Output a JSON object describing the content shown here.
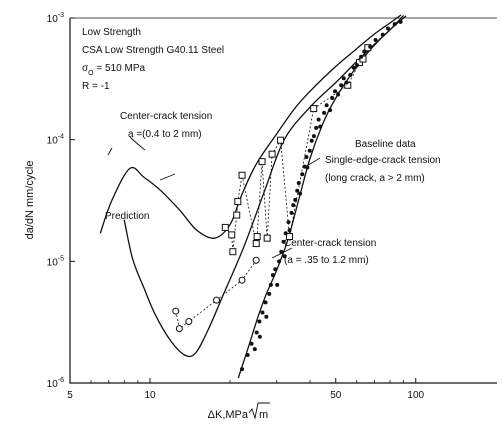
{
  "chart_data": {
    "type": "scatter",
    "title_lines": [
      "Low Strength",
      "CSA Low Strength G40.11 Steel"
    ],
    "stress": {
      "sym": "σ",
      "sub": "O",
      "val": " = 510 MPa"
    },
    "ratio_line": "R = -1",
    "xlabel_main": "ΔK,MPa ",
    "xlabel_root": "m",
    "ylabel": "da/dN mm/cycle",
    "xscale": "log",
    "yscale": "log",
    "xlim": [
      5,
      100
    ],
    "ylim": [
      1e-06,
      0.001
    ],
    "x_ticks": [
      {
        "v": 5,
        "label": "5"
      },
      {
        "v": 10,
        "label": "10"
      },
      {
        "v": 50,
        "label": "50"
      },
      {
        "v": 100,
        "label": "100"
      }
    ],
    "y_ticks": [
      {
        "v": 1e-06,
        "m": "10",
        "e": "-6"
      },
      {
        "v": 1e-05,
        "m": "10",
        "e": "-5"
      },
      {
        "v": 0.0001,
        "m": "10",
        "e": "-4"
      },
      {
        "v": 0.001,
        "m": "10",
        "e": "-3"
      }
    ],
    "annotations": {
      "cct1": "Center-crack tension",
      "cct1_range": "a =(0.4 to 2 mm)",
      "baseline": "Baseline data",
      "secrack": "Single-edge-crack tension",
      "secrack_range": "(long crack, a > 2 mm)",
      "cct2": "Center-crack tension",
      "cct2_range": "(a = .35 to 1.2 mm)",
      "prediction": "Prediction"
    },
    "series": [
      {
        "name": "Center-crack tension, a =(0.4 to 2 mm)",
        "marker": "square",
        "points": [
          [
            19.2,
            1.9e-05
          ],
          [
            20.3,
            1.65e-05
          ],
          [
            20.5,
            1.2e-05
          ],
          [
            21.2,
            2.4e-05
          ],
          [
            21.4,
            3.1e-05
          ],
          [
            22.2,
            5.1e-05
          ],
          [
            25.1,
            1.4e-05
          ],
          [
            25.3,
            1.6e-05
          ],
          [
            26.4,
            6.6e-05
          ],
          [
            27.6,
            1.55e-05
          ],
          [
            28.8,
            7.6e-05
          ],
          [
            31,
            9.9e-05
          ],
          [
            33.5,
            1.6e-05
          ],
          [
            41.3,
            0.00018
          ],
          [
            55.5,
            0.00028
          ],
          [
            61.4,
            0.00043
          ],
          [
            63.3,
            0.00046
          ],
          [
            66,
            0.00057
          ]
        ]
      },
      {
        "name": "Center-crack tension, (a = .35 to 1.2 mm)",
        "marker": "circle",
        "points": [
          [
            12.5,
            3.9e-06
          ],
          [
            12.9,
            2.8e-06
          ],
          [
            14,
            3.2e-06
          ],
          [
            17.8,
            4.8e-06
          ],
          [
            22.2,
            7e-06
          ],
          [
            25.1,
            1.02e-05
          ]
        ]
      },
      {
        "name": "Baseline data, Single-edge-crack tension (long crack, a > 2 mm)",
        "marker": "dot",
        "points": [
          [
            22.2,
            1.3e-06
          ],
          [
            23.3,
            1.7e-06
          ],
          [
            24.1,
            2.1e-06
          ],
          [
            24.8,
            1.9e-06
          ],
          [
            25.2,
            2.6e-06
          ],
          [
            25.8,
            3.2e-06
          ],
          [
            25.9,
            2.4e-06
          ],
          [
            26.5,
            3.8e-06
          ],
          [
            27.2,
            4.6e-06
          ],
          [
            27.4,
            3.5e-06
          ],
          [
            28.1,
            5.4e-06
          ],
          [
            28.5,
            6.4e-06
          ],
          [
            29,
            7.7e-06
          ],
          [
            29.6,
            8.6e-06
          ],
          [
            30.1,
            6.4e-06
          ],
          [
            30.6,
            1e-05
          ],
          [
            31.2,
            1.2e-05
          ],
          [
            31.8,
            1.45e-05
          ],
          [
            32.1,
            1.1e-05
          ],
          [
            32.4,
            1.7e-05
          ],
          [
            33.2,
            2.1e-05
          ],
          [
            33.5,
            1.8e-05
          ],
          [
            34.1,
            2.5e-05
          ],
          [
            34.6,
            2.9e-05
          ],
          [
            35.2,
            3.2e-05
          ],
          [
            35.8,
            3.8e-05
          ],
          [
            36.3,
            4.4e-05
          ],
          [
            36.7,
            3.6e-05
          ],
          [
            37.4,
            5.2e-05
          ],
          [
            38.2,
            6e-05
          ],
          [
            38.8,
            7.2e-05
          ],
          [
            39.1,
            5.9e-05
          ],
          [
            39.9,
            8.1e-05
          ],
          [
            40.6,
            9.8e-05
          ],
          [
            41.4,
            0.000107
          ],
          [
            42.2,
            0.000125
          ],
          [
            43.1,
            0.000146
          ],
          [
            43.7,
            0.000128
          ],
          [
            45.2,
            0.000166
          ],
          [
            46.2,
            0.000192
          ],
          [
            47.6,
            0.000175
          ],
          [
            48.5,
            0.00022
          ],
          [
            49.7,
            0.00025
          ],
          [
            51,
            0.000235
          ],
          [
            52.4,
            0.00028
          ],
          [
            53.6,
            0.00032
          ],
          [
            54.9,
            0.000295
          ],
          [
            56.7,
            0.00034
          ],
          [
            58.4,
            0.00039
          ],
          [
            60.1,
            0.00041
          ],
          [
            62.3,
            0.00048
          ],
          [
            64,
            0.00053
          ],
          [
            67.4,
            0.00058
          ],
          [
            70.6,
            0.00066
          ],
          [
            75.1,
            0.00073
          ],
          [
            78.6,
            0.00082
          ],
          [
            83.3,
            0.00089
          ],
          [
            87.7,
            0.00093
          ]
        ]
      }
    ],
    "curves": [
      {
        "name": "Prediction",
        "points": [
          [
            6.5,
            1.7e-05
          ],
          [
            7.2,
            3.2e-05
          ],
          [
            8.4,
            5.8e-05
          ],
          [
            9.5,
            4.9e-05
          ],
          [
            11,
            3.8e-05
          ],
          [
            13,
            2.6e-05
          ],
          [
            15,
            1.8e-05
          ],
          [
            17.5,
            1.55e-05
          ],
          [
            20,
            2e-05
          ],
          [
            22,
            3.4e-05
          ],
          [
            25,
            6.2e-05
          ],
          [
            30,
            0.000112
          ],
          [
            35,
            0.00018
          ],
          [
            40,
            0.00025
          ],
          [
            50,
            0.0004
          ],
          [
            60,
            0.00056
          ],
          [
            70,
            0.00074
          ],
          [
            80,
            0.00091
          ],
          [
            88,
            0.00106
          ]
        ]
      },
      {
        "name": "Prediction",
        "points": [
          [
            8,
            2.2e-05
          ],
          [
            8.6,
            1.05e-05
          ],
          [
            9.5,
            6e-06
          ],
          [
            10.5,
            3.6e-06
          ],
          [
            12,
            2.2e-06
          ],
          [
            13.5,
            1.7e-06
          ],
          [
            14.8,
            1.75e-06
          ],
          [
            16.5,
            2.7e-06
          ],
          [
            19,
            5.5e-06
          ],
          [
            22.5,
            1.3e-05
          ],
          [
            27,
            3.8e-05
          ],
          [
            32,
            0.0001
          ],
          [
            40,
            0.000185
          ],
          [
            50,
            0.000295
          ],
          [
            60,
            0.00044
          ],
          [
            70,
            0.00061
          ],
          [
            80,
            0.0008
          ],
          [
            90,
            0.00105
          ]
        ]
      },
      {
        "name": "Baseline data",
        "points": [
          [
            21.5,
            1.1e-06
          ],
          [
            23.5,
            2e-06
          ],
          [
            25.5,
            3.5e-06
          ],
          [
            27.5,
            5.5e-06
          ],
          [
            30,
            8.5e-06
          ],
          [
            33,
            1.5e-05
          ],
          [
            36,
            3e-05
          ],
          [
            40,
            7e-05
          ],
          [
            45,
            0.00014
          ],
          [
            50,
            0.00022
          ],
          [
            58,
            0.00036
          ],
          [
            68,
            0.00056
          ],
          [
            80,
            0.0008
          ],
          [
            92,
            0.00104
          ]
        ]
      }
    ]
  }
}
